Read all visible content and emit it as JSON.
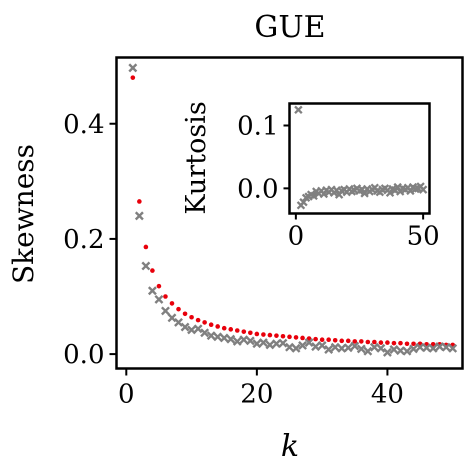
{
  "chart_data": [
    {
      "type": "scatter",
      "title": "GUE",
      "xlabel": "k",
      "ylabel": "Skewness",
      "xlim": [
        -1.5,
        51.5
      ],
      "ylim": [
        -0.025,
        0.515
      ],
      "xticks": [
        0,
        20,
        40
      ],
      "yticks": [
        0.0,
        0.2,
        0.4
      ],
      "xtick_labels": [
        "0",
        "20",
        "40"
      ],
      "ytick_labels": [
        "0.0",
        "0.2",
        "0.4"
      ],
      "grid": false,
      "series": [
        {
          "marker": "dot",
          "color": "#e8000b",
          "x": [
            1,
            2,
            3,
            4,
            5,
            6,
            7,
            8,
            9,
            10,
            11,
            12,
            13,
            14,
            15,
            16,
            17,
            18,
            19,
            20,
            21,
            22,
            23,
            24,
            25,
            26,
            27,
            28,
            29,
            30,
            31,
            32,
            33,
            34,
            35,
            36,
            37,
            38,
            39,
            40,
            41,
            42,
            43,
            44,
            45,
            46,
            47,
            48,
            49,
            50
          ],
          "y": [
            0.48,
            0.265,
            0.186,
            0.145,
            0.118,
            0.1,
            0.088,
            0.078,
            0.07,
            0.064,
            0.059,
            0.055,
            0.051,
            0.048,
            0.045,
            0.043,
            0.041,
            0.039,
            0.037,
            0.035,
            0.034,
            0.033,
            0.032,
            0.031,
            0.03,
            0.029,
            0.028,
            0.027,
            0.026,
            0.025,
            0.025,
            0.024,
            0.023,
            0.023,
            0.022,
            0.022,
            0.021,
            0.021,
            0.02,
            0.02,
            0.019,
            0.019,
            0.018,
            0.018,
            0.018,
            0.017,
            0.017,
            0.017,
            0.016,
            0.016
          ]
        },
        {
          "marker": "x",
          "color": "#808080",
          "x": [
            1,
            2,
            3,
            4,
            5,
            6,
            7,
            8,
            9,
            10,
            11,
            12,
            13,
            14,
            15,
            16,
            17,
            18,
            19,
            20,
            21,
            22,
            23,
            24,
            25,
            26,
            27,
            28,
            29,
            30,
            31,
            32,
            33,
            34,
            35,
            36,
            37,
            38,
            39,
            40,
            41,
            42,
            43,
            44,
            45,
            46,
            47,
            48,
            49,
            50
          ],
          "y": [
            0.497,
            0.24,
            0.153,
            0.11,
            0.095,
            0.075,
            0.063,
            0.055,
            0.047,
            0.042,
            0.044,
            0.037,
            0.032,
            0.03,
            0.028,
            0.026,
            0.022,
            0.025,
            0.023,
            0.018,
            0.02,
            0.016,
            0.018,
            0.019,
            0.012,
            0.01,
            0.015,
            0.02,
            0.013,
            0.015,
            0.008,
            0.012,
            0.01,
            0.011,
            0.014,
            0.009,
            0.005,
            0.012,
            0.01,
            0.003,
            0.008,
            0.006,
            0.005,
            0.009,
            0.012,
            0.011,
            0.01,
            0.013,
            0.012,
            0.01
          ]
        }
      ]
    },
    {
      "type": "scatter",
      "title": "",
      "xlabel": "",
      "ylabel": "Kurtosis",
      "xlim": [
        -2.5,
        52.5
      ],
      "ylim": [
        -0.04,
        0.135
      ],
      "xticks": [
        0,
        50
      ],
      "yticks": [
        0.0,
        0.1
      ],
      "xtick_labels": [
        "0",
        "50"
      ],
      "ytick_labels": [
        "0.0",
        "0.1"
      ],
      "grid": false,
      "series": [
        {
          "marker": "x",
          "color": "#808080",
          "x": [
            1,
            2,
            3,
            4,
            5,
            6,
            7,
            8,
            9,
            10,
            11,
            12,
            13,
            14,
            15,
            16,
            17,
            18,
            19,
            20,
            21,
            22,
            23,
            24,
            25,
            26,
            27,
            28,
            29,
            30,
            31,
            32,
            33,
            34,
            35,
            36,
            37,
            38,
            39,
            40,
            41,
            42,
            43,
            44,
            45,
            46,
            47,
            48,
            49,
            50
          ],
          "y": [
            0.125,
            -0.027,
            -0.022,
            -0.015,
            -0.013,
            -0.01,
            -0.012,
            -0.005,
            -0.008,
            -0.004,
            -0.009,
            -0.003,
            -0.006,
            -0.002,
            -0.007,
            -0.003,
            -0.01,
            -0.004,
            -0.002,
            -0.006,
            -0.001,
            -0.005,
            -0.003,
            0.0,
            -0.004,
            -0.002,
            -0.008,
            -0.001,
            -0.005,
            -0.002,
            0.001,
            -0.004,
            -0.006,
            -0.002,
            0.0,
            -0.003,
            -0.007,
            -0.001,
            -0.003,
            0.002,
            -0.005,
            0.0,
            -0.002,
            0.001,
            -0.004,
            0.002,
            -0.001,
            0.0,
            0.003,
            -0.002
          ]
        }
      ]
    }
  ]
}
